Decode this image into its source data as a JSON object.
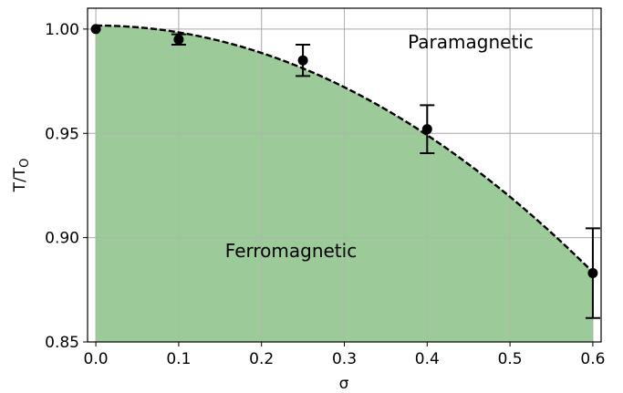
{
  "chart_data": {
    "type": "scatter",
    "xlabel": "σ",
    "ylabel": {
      "main": "T/T",
      "subscript": "O"
    },
    "xlim": [
      -0.01,
      0.61
    ],
    "ylim": [
      0.85,
      1.01
    ],
    "xticks": [
      "0.0",
      "0.1",
      "0.2",
      "0.3",
      "0.4",
      "0.5",
      "0.6"
    ],
    "yticks": [
      "0.85",
      "0.90",
      "0.95",
      "1.00"
    ],
    "grid": true,
    "annotations": [
      "Paramagnetic",
      "Ferromagnetic"
    ],
    "points": [
      {
        "x": 0.0,
        "y": 1.0,
        "err": 0.0
      },
      {
        "x": 0.1,
        "y": 0.995,
        "err": 0.0025
      },
      {
        "x": 0.25,
        "y": 0.985,
        "err": 0.0075
      },
      {
        "x": 0.4,
        "y": 0.952,
        "err": 0.0115
      },
      {
        "x": 0.6,
        "y": 0.883,
        "err": 0.0215
      }
    ],
    "fit_curve": {
      "style": "dashed",
      "y0": 1.0017,
      "a": 0.3285,
      "x_range": [
        0.0,
        0.6
      ]
    },
    "colors": {
      "fill": "#9ccb99",
      "grid": "#b0b0b0",
      "marker": "#000000",
      "curve": "#000000"
    }
  }
}
